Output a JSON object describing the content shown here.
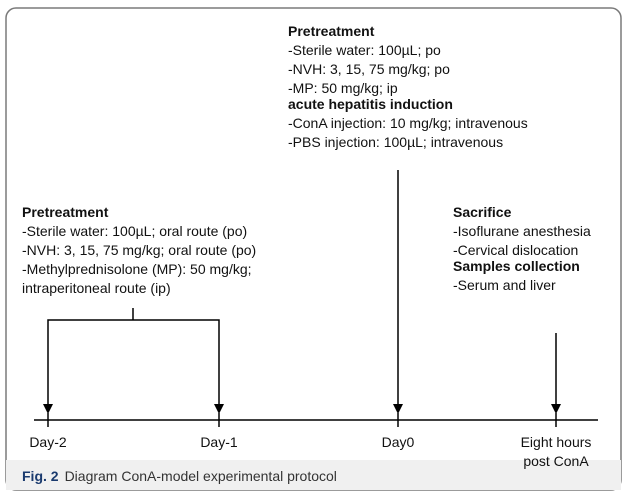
{
  "blocks": [
    {
      "title": "Pretreatment",
      "lines": [
        "-Sterile water: 100µL; po",
        "-NVH: 3, 15, 75 mg/kg; po",
        "-MP: 50 mg/kg; ip"
      ]
    },
    {
      "title": "acute hepatitis induction",
      "lines": [
        "-ConA injection: 10 mg/kg; intravenous",
        "-PBS injection: 100µL; intravenous"
      ]
    },
    {
      "title": "Pretreatment",
      "lines": [
        "-Sterile water: 100µL; oral route (po)",
        "-NVH: 3, 15, 75 mg/kg; oral route (po)",
        "-Methylprednisolone (MP): 50 mg/kg;",
        "intraperitoneal route (ip)"
      ]
    },
    {
      "title": "Sacrifice",
      "lines": [
        "-Isoflurane anesthesia",
        "-Cervical dislocation"
      ]
    },
    {
      "title": "Samples collection",
      "lines": [
        "-Serum and liver"
      ]
    }
  ],
  "timeline": [
    "Day-2",
    "Day-1",
    "Day0",
    "Eight hours",
    "post ConA"
  ],
  "caption": {
    "label": "Fig. 2",
    "text": "Diagram ConA-model experimental protocol"
  }
}
